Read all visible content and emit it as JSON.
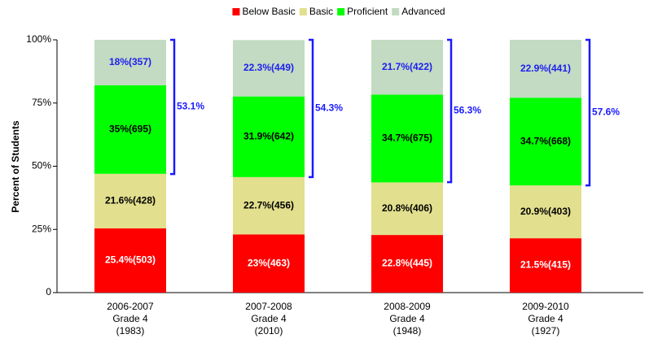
{
  "chart_data": {
    "type": "stacked_bar",
    "categories": [
      [
        "2006-2007",
        "Grade 4",
        "(1983)"
      ],
      [
        "2007-2008",
        "Grade 4",
        "(2010)"
      ],
      [
        "2008-2009",
        "Grade 4",
        "(1948)"
      ],
      [
        "2009-2010",
        "Grade 4",
        "(1927)"
      ]
    ],
    "series": [
      {
        "name": "Below Basic",
        "color": "#ff0000",
        "label_color": "#ffffff",
        "values": [
          25.4,
          23,
          22.8,
          21.5
        ],
        "value_labels": [
          "25.4%(503)",
          "23%(463)",
          "22.8%(445)",
          "21.5%(415)"
        ]
      },
      {
        "name": "Basic",
        "color": "#e2df8e",
        "label_color": "#000000",
        "values": [
          21.6,
          22.7,
          20.8,
          20.9
        ],
        "value_labels": [
          "21.6%(428)",
          "22.7%(456)",
          "20.8%(406)",
          "20.9%(403)"
        ]
      },
      {
        "name": "Proficient",
        "color": "#00ff00",
        "label_color": "#000000",
        "values": [
          35,
          31.9,
          34.7,
          34.7
        ],
        "value_labels": [
          "35%(695)",
          "31.9%(642)",
          "34.7%(675)",
          "34.7%(668)"
        ]
      },
      {
        "name": "Advanced",
        "color": "#c2dbc2",
        "label_color": "#2020ee",
        "values": [
          18,
          22.3,
          21.7,
          22.9
        ],
        "value_labels": [
          "18%(357)",
          "22.3%(449)",
          "21.7%(422)",
          "22.9%(441)"
        ]
      }
    ],
    "annotations": [
      {
        "value": 53.1,
        "label": "53.1%"
      },
      {
        "value": 54.3,
        "label": "54.3%"
      },
      {
        "value": 56.3,
        "label": "56.3%"
      },
      {
        "value": 57.6,
        "label": "57.6%"
      }
    ],
    "annotation_color": "#1a1aff",
    "y_label": "Percent of Students",
    "ylim": [
      0,
      100
    ],
    "yticks": [
      0,
      {
        "value": 25,
        "label": "25%"
      },
      {
        "value": 50,
        "label": "50%"
      },
      {
        "value": 75,
        "label": "75%"
      },
      {
        "value": 100,
        "label": "100%"
      }
    ],
    "legend": "top"
  }
}
